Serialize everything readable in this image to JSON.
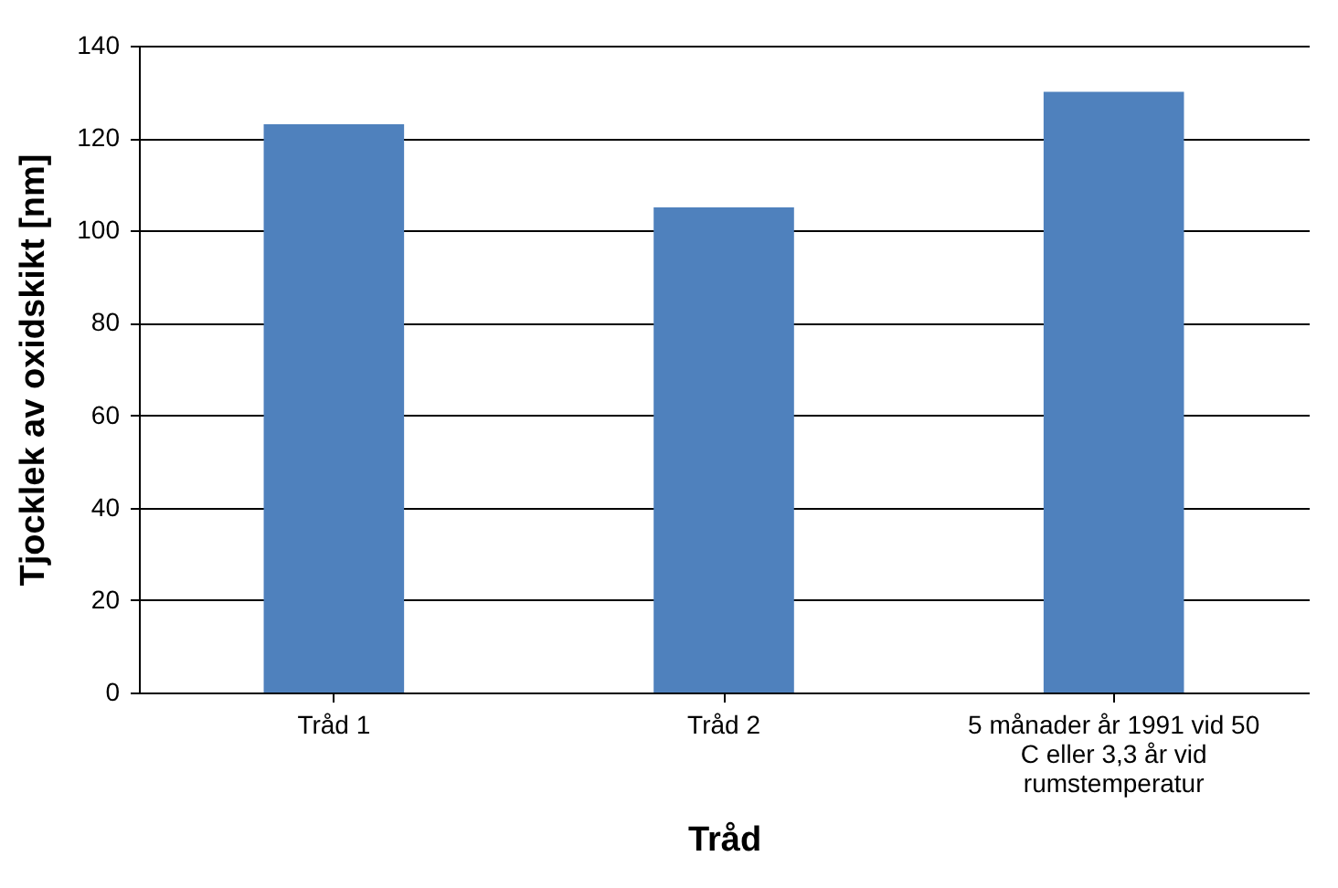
{
  "chart_data": {
    "type": "bar",
    "xlabel": "Tråd",
    "ylabel": "Tjocklek av oxidskikt [nm]",
    "categories": [
      "Tråd 1",
      "Tråd 2",
      "5 månader år 1991 vid 50 C eller 3,3 år vid rumstemperatur"
    ],
    "values": [
      123,
      105,
      130
    ],
    "color": "#4f81bd",
    "ylim": [
      0,
      140
    ],
    "yticks": [
      0,
      20,
      40,
      60,
      80,
      100,
      120,
      140
    ],
    "grid": "y"
  }
}
